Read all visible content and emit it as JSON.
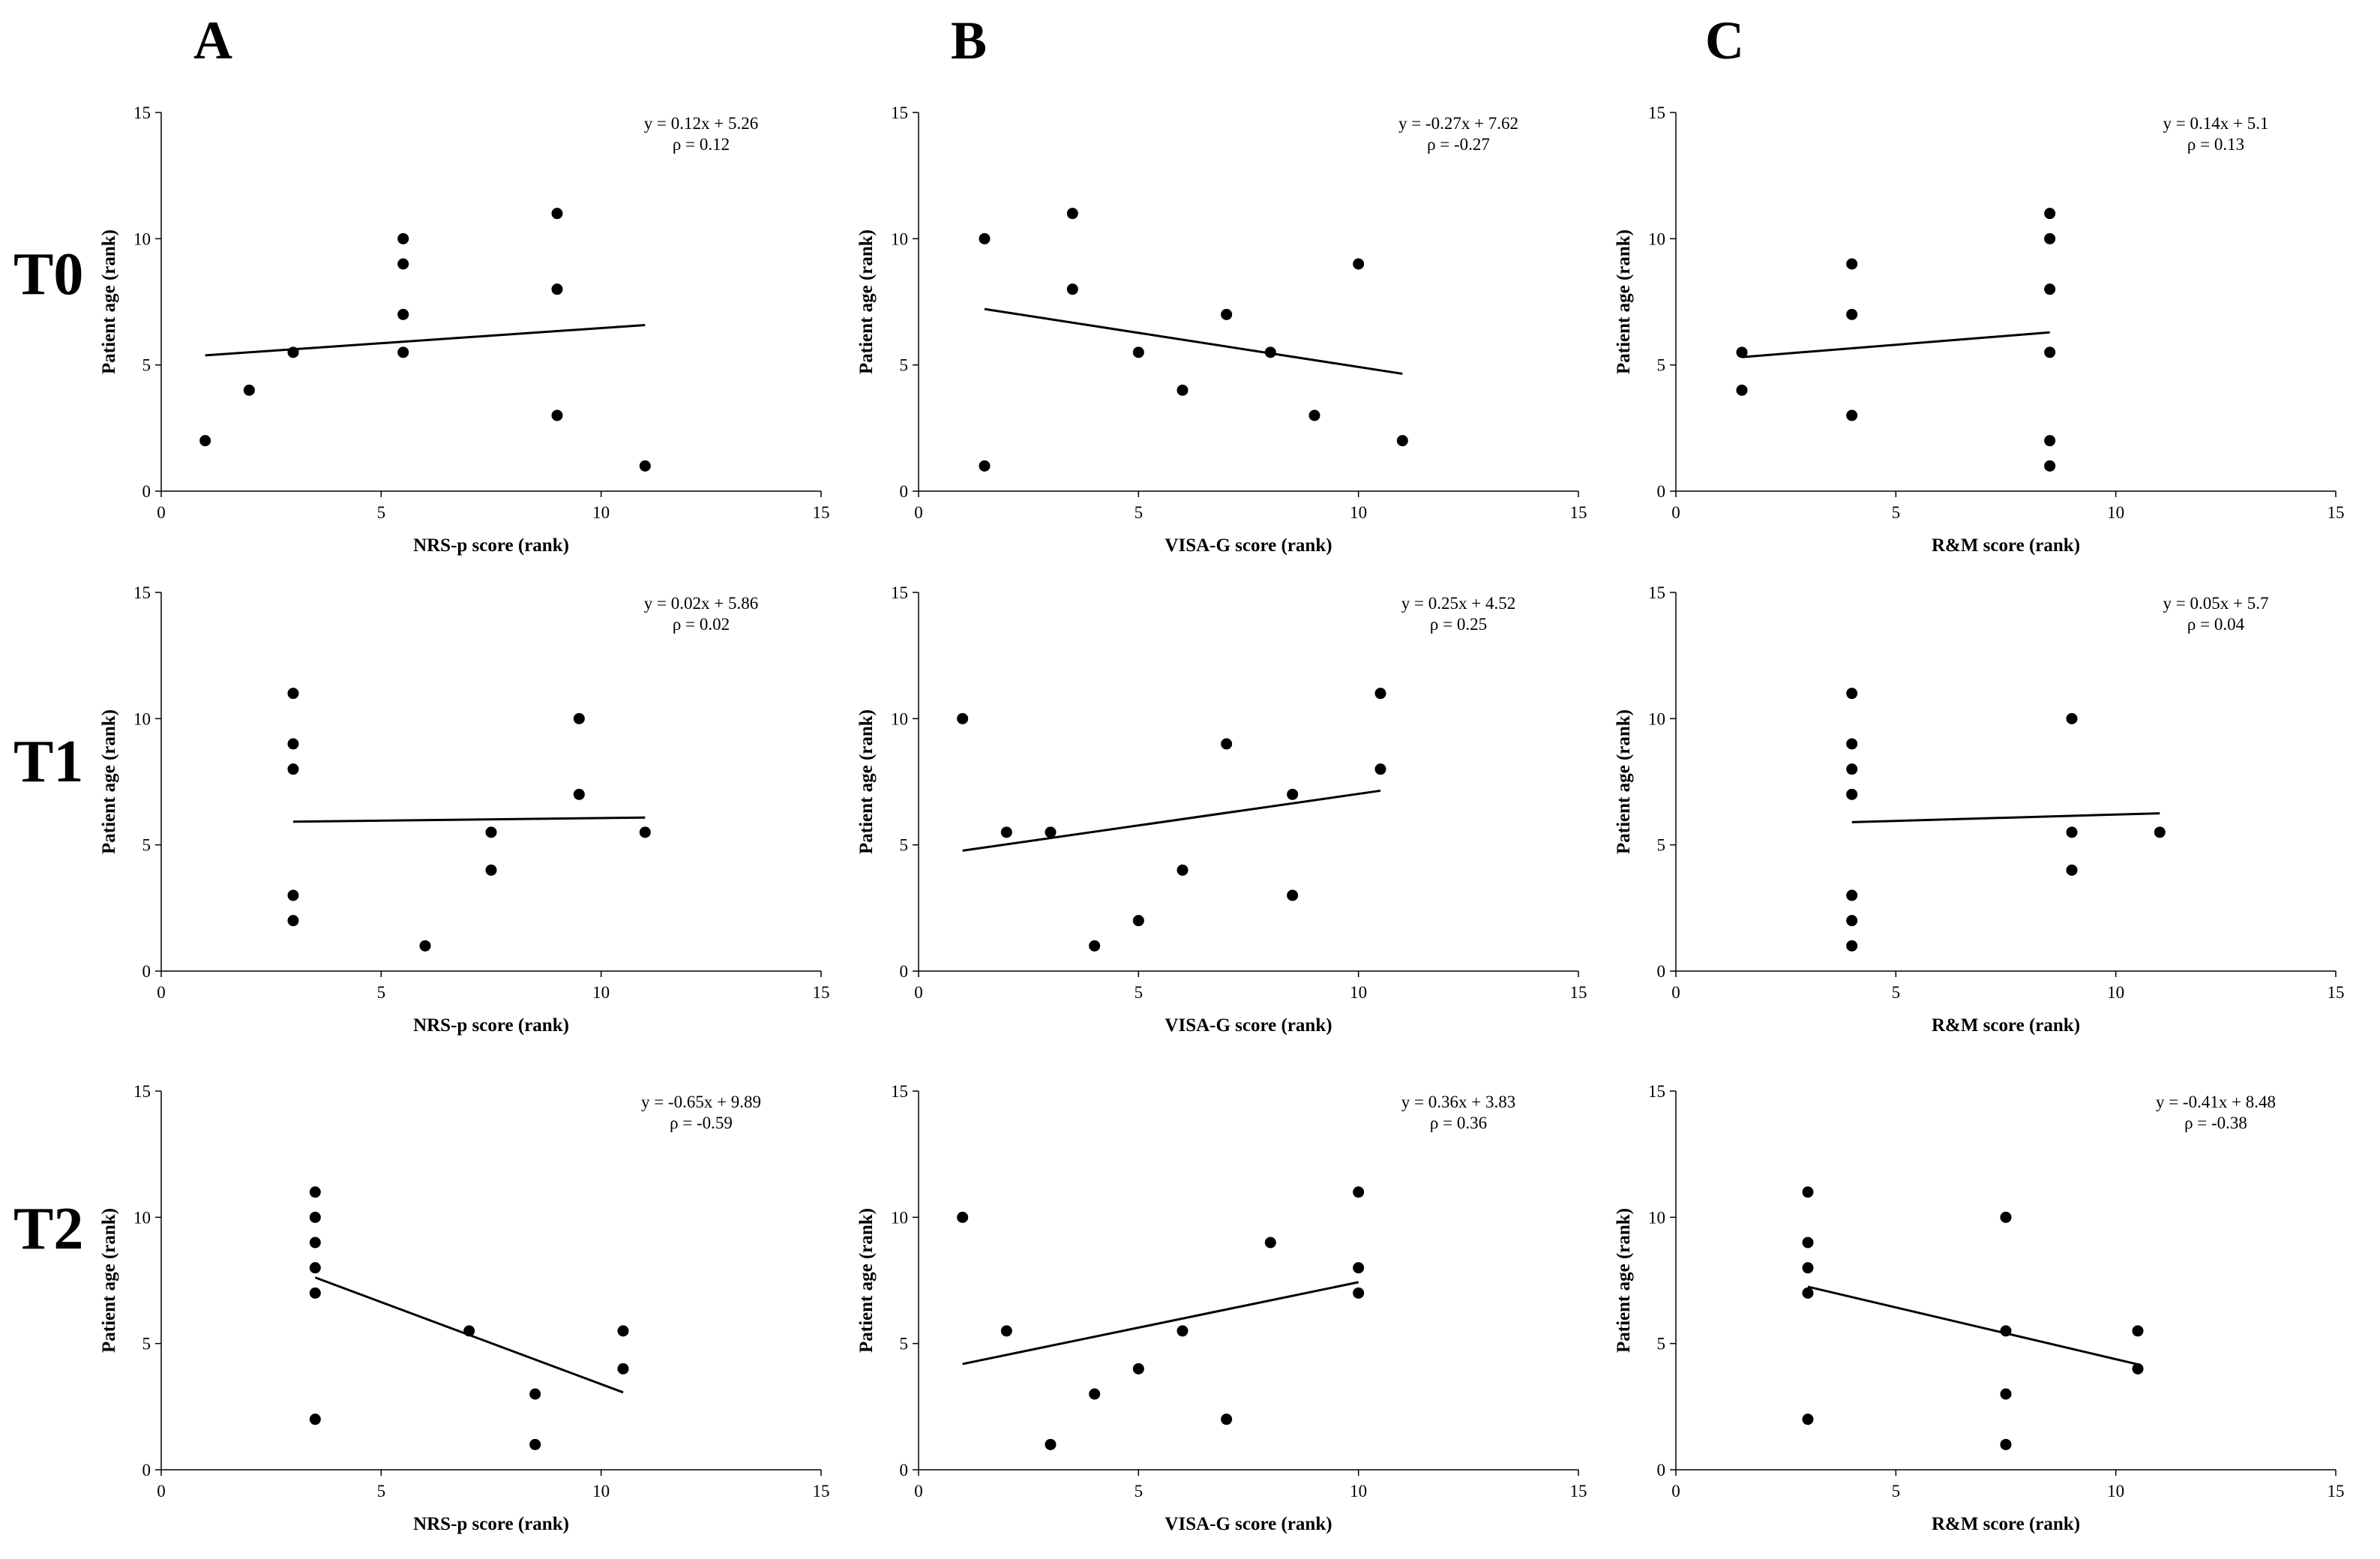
{
  "column_labels": [
    "A",
    "B",
    "C"
  ],
  "row_labels": [
    "T0",
    "T1",
    "T2"
  ],
  "colors": {
    "points": "#000000",
    "lines": "#000000",
    "background": "#ffffff"
  },
  "chart_data": [
    {
      "type": "scatter",
      "row": "T0",
      "column": "A",
      "xlabel": "NRS-p score (rank)",
      "ylabel": "Patient age (rank)",
      "xlim": [
        0,
        15
      ],
      "ylim": [
        0,
        15
      ],
      "xticks": [
        0,
        5,
        10,
        15
      ],
      "yticks": [
        0,
        5,
        10,
        15
      ],
      "points": [
        [
          1,
          2
        ],
        [
          2,
          4
        ],
        [
          3,
          5.5
        ],
        [
          5.5,
          10
        ],
        [
          5.5,
          9
        ],
        [
          5.5,
          7
        ],
        [
          5.5,
          5.5
        ],
        [
          9,
          11
        ],
        [
          9,
          8
        ],
        [
          9,
          3
        ],
        [
          11,
          1
        ]
      ],
      "trendline": {
        "slope": 0.12,
        "intercept": 5.26,
        "x_range": [
          1,
          11
        ]
      },
      "equation": "y = 0.12x + 5.26",
      "rho": "ρ = 0.12"
    },
    {
      "type": "scatter",
      "row": "T0",
      "column": "B",
      "xlabel": "VISA-G score (rank)",
      "ylabel": "Patient age (rank)",
      "xlim": [
        0,
        15
      ],
      "ylim": [
        0,
        15
      ],
      "xticks": [
        0,
        5,
        10,
        15
      ],
      "yticks": [
        0,
        5,
        10,
        15
      ],
      "points": [
        [
          1.5,
          10
        ],
        [
          1.5,
          1
        ],
        [
          3.5,
          11
        ],
        [
          3.5,
          8
        ],
        [
          5,
          5.5
        ],
        [
          6,
          4
        ],
        [
          7,
          7
        ],
        [
          8,
          5.5
        ],
        [
          9,
          3
        ],
        [
          10,
          9
        ],
        [
          11,
          2
        ]
      ],
      "trendline": {
        "slope": -0.27,
        "intercept": 7.62,
        "x_range": [
          1.5,
          11
        ]
      },
      "equation": "y = -0.27x + 7.62",
      "rho": "ρ = -0.27"
    },
    {
      "type": "scatter",
      "row": "T0",
      "column": "C",
      "xlabel": "R&M score (rank)",
      "ylabel": "Patient age (rank)",
      "xlim": [
        0,
        15
      ],
      "ylim": [
        0,
        15
      ],
      "xticks": [
        0,
        5,
        10,
        15
      ],
      "yticks": [
        0,
        5,
        10,
        15
      ],
      "points": [
        [
          1.5,
          5.5
        ],
        [
          1.5,
          4
        ],
        [
          4,
          9
        ],
        [
          4,
          7
        ],
        [
          4,
          3
        ],
        [
          8.5,
          11
        ],
        [
          8.5,
          10
        ],
        [
          8.5,
          8
        ],
        [
          8.5,
          5.5
        ],
        [
          8.5,
          2
        ],
        [
          8.5,
          1
        ]
      ],
      "trendline": {
        "slope": 0.14,
        "intercept": 5.1,
        "x_range": [
          1.5,
          8.5
        ]
      },
      "equation": "y = 0.14x + 5.1",
      "rho": "ρ = 0.13"
    },
    {
      "type": "scatter",
      "row": "T1",
      "column": "A",
      "xlabel": "NRS-p score (rank)",
      "ylabel": "Patient age (rank)",
      "xlim": [
        0,
        15
      ],
      "ylim": [
        0,
        15
      ],
      "xticks": [
        0,
        5,
        10,
        15
      ],
      "yticks": [
        0,
        5,
        10,
        15
      ],
      "points": [
        [
          3,
          11
        ],
        [
          3,
          9
        ],
        [
          3,
          8
        ],
        [
          3,
          3
        ],
        [
          3,
          2
        ],
        [
          6,
          1
        ],
        [
          7.5,
          5.5
        ],
        [
          7.5,
          4
        ],
        [
          9.5,
          10
        ],
        [
          9.5,
          7
        ],
        [
          11,
          5.5
        ]
      ],
      "trendline": {
        "slope": 0.02,
        "intercept": 5.86,
        "x_range": [
          3,
          11
        ]
      },
      "equation": "y = 0.02x + 5.86",
      "rho": "ρ = 0.02"
    },
    {
      "type": "scatter",
      "row": "T1",
      "column": "B",
      "xlabel": "VISA-G score (rank)",
      "ylabel": "Patient age (rank)",
      "xlim": [
        0,
        15
      ],
      "ylim": [
        0,
        15
      ],
      "xticks": [
        0,
        5,
        10,
        15
      ],
      "yticks": [
        0,
        5,
        10,
        15
      ],
      "points": [
        [
          1,
          10
        ],
        [
          2,
          5.5
        ],
        [
          3,
          5.5
        ],
        [
          4,
          1
        ],
        [
          5,
          2
        ],
        [
          6,
          4
        ],
        [
          7,
          9
        ],
        [
          8.5,
          7
        ],
        [
          8.5,
          3
        ],
        [
          10.5,
          11
        ],
        [
          10.5,
          8
        ]
      ],
      "trendline": {
        "slope": 0.25,
        "intercept": 4.52,
        "x_range": [
          1,
          10.5
        ]
      },
      "equation": "y = 0.25x + 4.52",
      "rho": "ρ = 0.25"
    },
    {
      "type": "scatter",
      "row": "T1",
      "column": "C",
      "xlabel": "R&M score (rank)",
      "ylabel": "Patient age (rank)",
      "xlim": [
        0,
        15
      ],
      "ylim": [
        0,
        15
      ],
      "xticks": [
        0,
        5,
        10,
        15
      ],
      "yticks": [
        0,
        5,
        10,
        15
      ],
      "points": [
        [
          4,
          11
        ],
        [
          4,
          9
        ],
        [
          4,
          8
        ],
        [
          4,
          7
        ],
        [
          4,
          3
        ],
        [
          4,
          2
        ],
        [
          4,
          1
        ],
        [
          9,
          10
        ],
        [
          9,
          5.5
        ],
        [
          9,
          4
        ],
        [
          11,
          5.5
        ]
      ],
      "trendline": {
        "slope": 0.05,
        "intercept": 5.7,
        "x_range": [
          4,
          11
        ]
      },
      "equation": "y = 0.05x + 5.7",
      "rho": "ρ = 0.04"
    },
    {
      "type": "scatter",
      "row": "T2",
      "column": "A",
      "xlabel": "NRS-p score (rank)",
      "ylabel": "Patient age (rank)",
      "xlim": [
        0,
        15
      ],
      "ylim": [
        0,
        15
      ],
      "xticks": [
        0,
        5,
        10,
        15
      ],
      "yticks": [
        0,
        5,
        10,
        15
      ],
      "points": [
        [
          3.5,
          11
        ],
        [
          3.5,
          10
        ],
        [
          3.5,
          9
        ],
        [
          3.5,
          8
        ],
        [
          3.5,
          7
        ],
        [
          3.5,
          2
        ],
        [
          7,
          5.5
        ],
        [
          8.5,
          3
        ],
        [
          8.5,
          1
        ],
        [
          10.5,
          5.5
        ],
        [
          10.5,
          4
        ]
      ],
      "trendline": {
        "slope": -0.65,
        "intercept": 9.89,
        "x_range": [
          3.5,
          10.5
        ]
      },
      "equation": "y = -0.65x + 9.89",
      "rho": "ρ = -0.59"
    },
    {
      "type": "scatter",
      "row": "T2",
      "column": "B",
      "xlabel": "VISA-G score (rank)",
      "ylabel": "Patient age (rank)",
      "xlim": [
        0,
        15
      ],
      "ylim": [
        0,
        15
      ],
      "xticks": [
        0,
        5,
        10,
        15
      ],
      "yticks": [
        0,
        5,
        10,
        15
      ],
      "points": [
        [
          1,
          10
        ],
        [
          2,
          5.5
        ],
        [
          3,
          1
        ],
        [
          4,
          3
        ],
        [
          5,
          4
        ],
        [
          6,
          5.5
        ],
        [
          7,
          2
        ],
        [
          8,
          9
        ],
        [
          10,
          11
        ],
        [
          10,
          8
        ],
        [
          10,
          7
        ]
      ],
      "trendline": {
        "slope": 0.36,
        "intercept": 3.83,
        "x_range": [
          1,
          10
        ]
      },
      "equation": "y = 0.36x + 3.83",
      "rho": "ρ = 0.36"
    },
    {
      "type": "scatter",
      "row": "T2",
      "column": "C",
      "xlabel": "R&M score (rank)",
      "ylabel": "Patient age (rank)",
      "xlim": [
        0,
        15
      ],
      "ylim": [
        0,
        15
      ],
      "xticks": [
        0,
        5,
        10,
        15
      ],
      "yticks": [
        0,
        5,
        10,
        15
      ],
      "points": [
        [
          3,
          11
        ],
        [
          3,
          9
        ],
        [
          3,
          8
        ],
        [
          3,
          7
        ],
        [
          3,
          2
        ],
        [
          7.5,
          10
        ],
        [
          7.5,
          5.5
        ],
        [
          7.5,
          3
        ],
        [
          7.5,
          1
        ],
        [
          10.5,
          5.5
        ],
        [
          10.5,
          4
        ]
      ],
      "trendline": {
        "slope": -0.41,
        "intercept": 8.48,
        "x_range": [
          3,
          10.5
        ]
      },
      "equation": "y = -0.41x + 8.48",
      "rho": "ρ = -0.38"
    }
  ]
}
